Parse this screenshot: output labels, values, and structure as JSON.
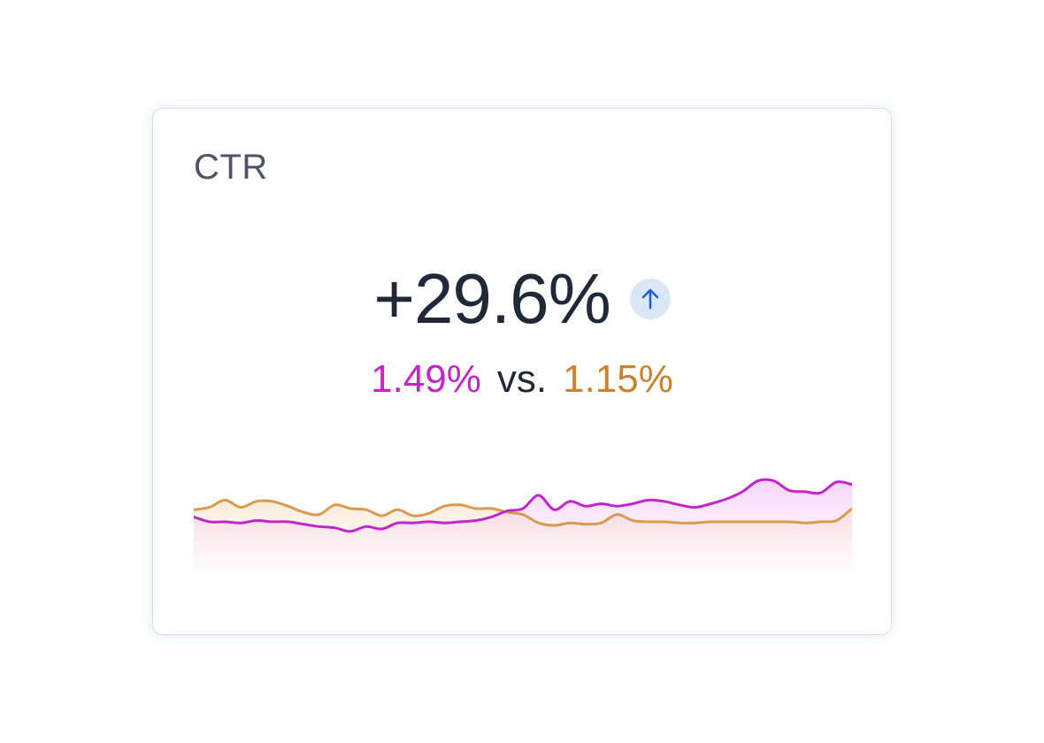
{
  "card": {
    "title": "CTR",
    "delta": "+29.6%",
    "trend_icon": "arrow-up-icon",
    "current_value": "1.49%",
    "vs_label": "vs.",
    "previous_value": "1.15%"
  },
  "colors": {
    "current": "#c026c9",
    "previous": "#d99a52",
    "trend_badge_bg": "#dbe7f7",
    "trend_arrow": "#1d5fd1"
  },
  "chart_data": {
    "type": "area",
    "title": "",
    "xlabel": "",
    "ylabel": "",
    "grid": false,
    "ylim": [
      0.9,
      1.9
    ],
    "series": [
      {
        "values": [
          1.36,
          1.32,
          1.32,
          1.31,
          1.33,
          1.32,
          1.32,
          1.3,
          1.28,
          1.27,
          1.24,
          1.28,
          1.26,
          1.31,
          1.31,
          1.32,
          1.31,
          1.32,
          1.33,
          1.36,
          1.41,
          1.43,
          1.54,
          1.42,
          1.49,
          1.45,
          1.47,
          1.45,
          1.47,
          1.5,
          1.49,
          1.46,
          1.44,
          1.47,
          1.51,
          1.57,
          1.66,
          1.66,
          1.58,
          1.57,
          1.56,
          1.65,
          1.63
        ]
      },
      {
        "values": [
          1.42,
          1.44,
          1.5,
          1.44,
          1.49,
          1.49,
          1.45,
          1.4,
          1.38,
          1.46,
          1.43,
          1.42,
          1.37,
          1.42,
          1.37,
          1.39,
          1.45,
          1.46,
          1.43,
          1.43,
          1.4,
          1.38,
          1.31,
          1.29,
          1.31,
          1.3,
          1.31,
          1.38,
          1.33,
          1.32,
          1.32,
          1.31,
          1.31,
          1.32,
          1.32,
          1.32,
          1.32,
          1.32,
          1.32,
          1.31,
          1.32,
          1.33,
          1.43
        ]
      }
    ]
  }
}
